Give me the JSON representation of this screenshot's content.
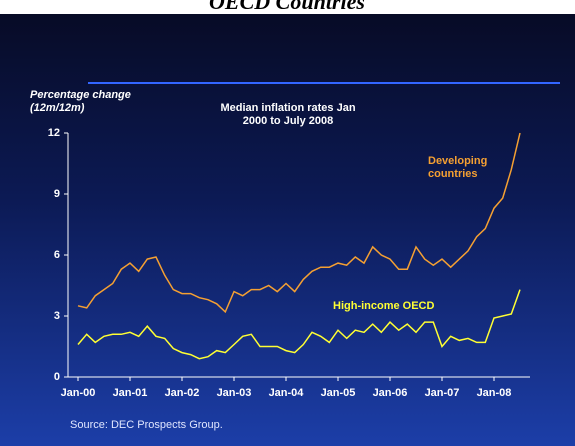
{
  "chart_data": {
    "type": "line",
    "page_title": "OECD Countries",
    "title": "Median inflation rates Jan 2000 to July 2008",
    "y_label": "Percentage change (12m/12m)",
    "source": "Source: DEC Prospects Group.",
    "categories": [
      "Jan-00",
      null,
      null,
      null,
      null,
      null,
      "Jan-01",
      null,
      null,
      null,
      null,
      null,
      "Jan-02",
      null,
      null,
      null,
      null,
      null,
      "Jan-03",
      null,
      null,
      null,
      null,
      null,
      "Jan-04",
      null,
      null,
      null,
      null,
      null,
      "Jan-05",
      null,
      null,
      null,
      null,
      null,
      "Jan-06",
      null,
      null,
      null,
      null,
      null,
      "Jan-07",
      null,
      null,
      null,
      null,
      null,
      "Jan-08",
      null,
      null,
      null
    ],
    "series": [
      {
        "name": "Developing countries",
        "color": "#f5a032",
        "values": [
          3.5,
          3.4,
          4.0,
          4.3,
          4.6,
          5.3,
          5.6,
          5.2,
          5.8,
          5.9,
          5.0,
          4.3,
          4.1,
          4.1,
          3.9,
          3.8,
          3.6,
          3.2,
          4.2,
          4.0,
          4.3,
          4.3,
          4.5,
          4.2,
          4.6,
          4.2,
          4.8,
          5.2,
          5.4,
          5.4,
          5.6,
          5.5,
          5.9,
          5.6,
          6.4,
          6.0,
          5.8,
          5.3,
          5.3,
          6.4,
          5.8,
          5.5,
          5.8,
          5.4,
          5.8,
          6.2,
          6.9,
          7.3,
          8.3,
          8.8,
          10.2,
          12.0
        ]
      },
      {
        "name": "High-income OECD",
        "color": "#ffff33",
        "values": [
          1.6,
          2.1,
          1.7,
          2.0,
          2.1,
          2.1,
          2.2,
          2.0,
          2.5,
          2.0,
          1.9,
          1.4,
          1.2,
          1.1,
          0.9,
          1.0,
          1.3,
          1.2,
          1.6,
          2.0,
          2.1,
          1.5,
          1.5,
          1.5,
          1.3,
          1.2,
          1.6,
          2.2,
          2.0,
          1.7,
          2.3,
          1.9,
          2.3,
          2.2,
          2.6,
          2.2,
          2.7,
          2.3,
          2.6,
          2.2,
          2.7,
          2.7,
          1.5,
          2.0,
          1.8,
          1.9,
          1.7,
          1.7,
          2.9,
          3.0,
          3.1,
          4.3
        ]
      }
    ],
    "ylim": [
      0,
      12
    ],
    "yticks": [
      0,
      3,
      6,
      9,
      12
    ],
    "grid": false
  }
}
